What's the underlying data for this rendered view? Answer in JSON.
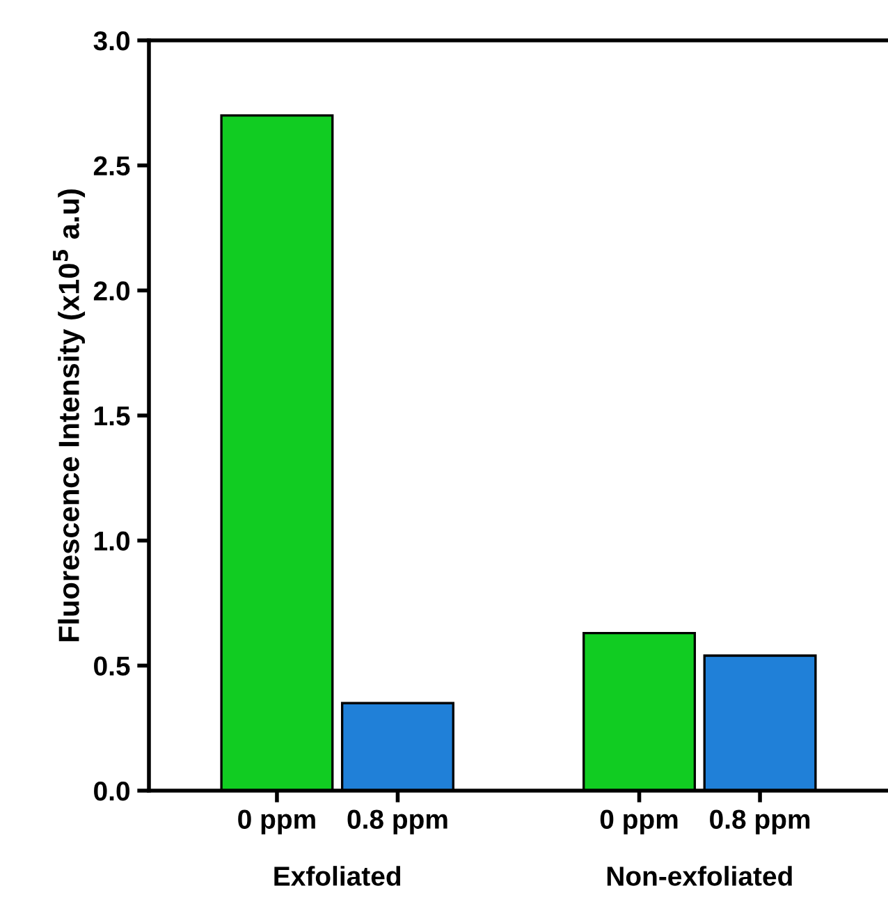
{
  "chart_data": {
    "type": "bar",
    "categories": [
      "0 ppm",
      "0.8 ppm",
      null,
      "0 ppm",
      "0.8 ppm"
    ],
    "values": [
      2.7,
      0.35,
      null,
      0.63,
      0.54
    ],
    "colors": [
      "#11cc22",
      "#2080d8",
      null,
      "#11cc22",
      "#2080d8"
    ],
    "ylabel": "Fluorescence Intensity (x10$^{5}$ a.u)",
    "ylim": [
      0,
      3.0
    ],
    "yticks": [
      {
        "value": 0,
        "label": "0.0"
      },
      {
        "value": 0.5,
        "label": "0.5"
      },
      {
        "value": 1.0,
        "label": "1.0"
      },
      {
        "value": 1.5,
        "label": "1.5"
      },
      {
        "value": 2.0,
        "label": "2.0"
      },
      {
        "value": 2.5,
        "label": "2.5"
      },
      {
        "value": 3.0,
        "label": "3.0"
      }
    ],
    "annotations": [
      "Exfoliated",
      "Non-exfoliated"
    ],
    "grid": false,
    "legend": false
  }
}
